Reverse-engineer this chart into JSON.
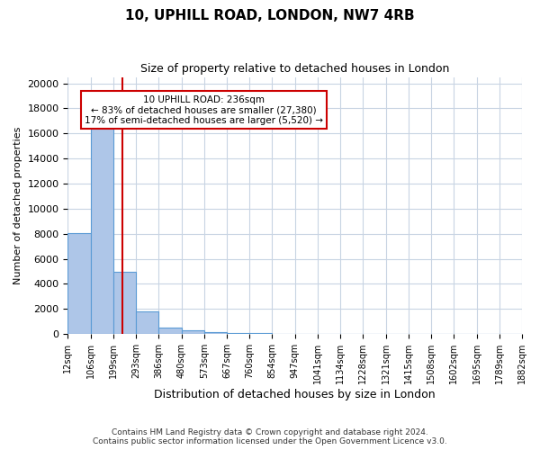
{
  "title1": "10, UPHILL ROAD, LONDON, NW7 4RB",
  "title2": "Size of property relative to detached houses in London",
  "xlabel": "Distribution of detached houses by size in London",
  "ylabel": "Number of detached properties",
  "bar_values": [
    8050,
    16500,
    5000,
    1800,
    500,
    280,
    170,
    120,
    80,
    50,
    30,
    20,
    10,
    5,
    3,
    2,
    1,
    1,
    0,
    0
  ],
  "bar_labels": [
    "12sqm",
    "106sqm",
    "199sqm",
    "293sqm",
    "386sqm",
    "480sqm",
    "573sqm",
    "667sqm",
    "760sqm",
    "854sqm",
    "947sqm",
    "1041sqm",
    "1134sqm",
    "1228sqm",
    "1321sqm",
    "1415sqm",
    "1508sqm",
    "1602sqm",
    "1695sqm",
    "1789sqm",
    "1882sqm"
  ],
  "bar_color": "#aec6e8",
  "bar_edge_color": "#5b9bd5",
  "vline_color": "#cc0000",
  "annotation_text": "10 UPHILL ROAD: 236sqm\n← 83% of detached houses are smaller (27,380)\n17% of semi-detached houses are larger (5,520) →",
  "annotation_box_color": "#cc0000",
  "ylim": [
    0,
    20500
  ],
  "yticks": [
    0,
    2000,
    4000,
    6000,
    8000,
    10000,
    12000,
    14000,
    16000,
    18000,
    20000
  ],
  "bg_color": "#ffffff",
  "grid_color": "#c8d4e3",
  "footer1": "Contains HM Land Registry data © Crown copyright and database right 2024.",
  "footer2": "Contains public sector information licensed under the Open Government Licence v3.0."
}
